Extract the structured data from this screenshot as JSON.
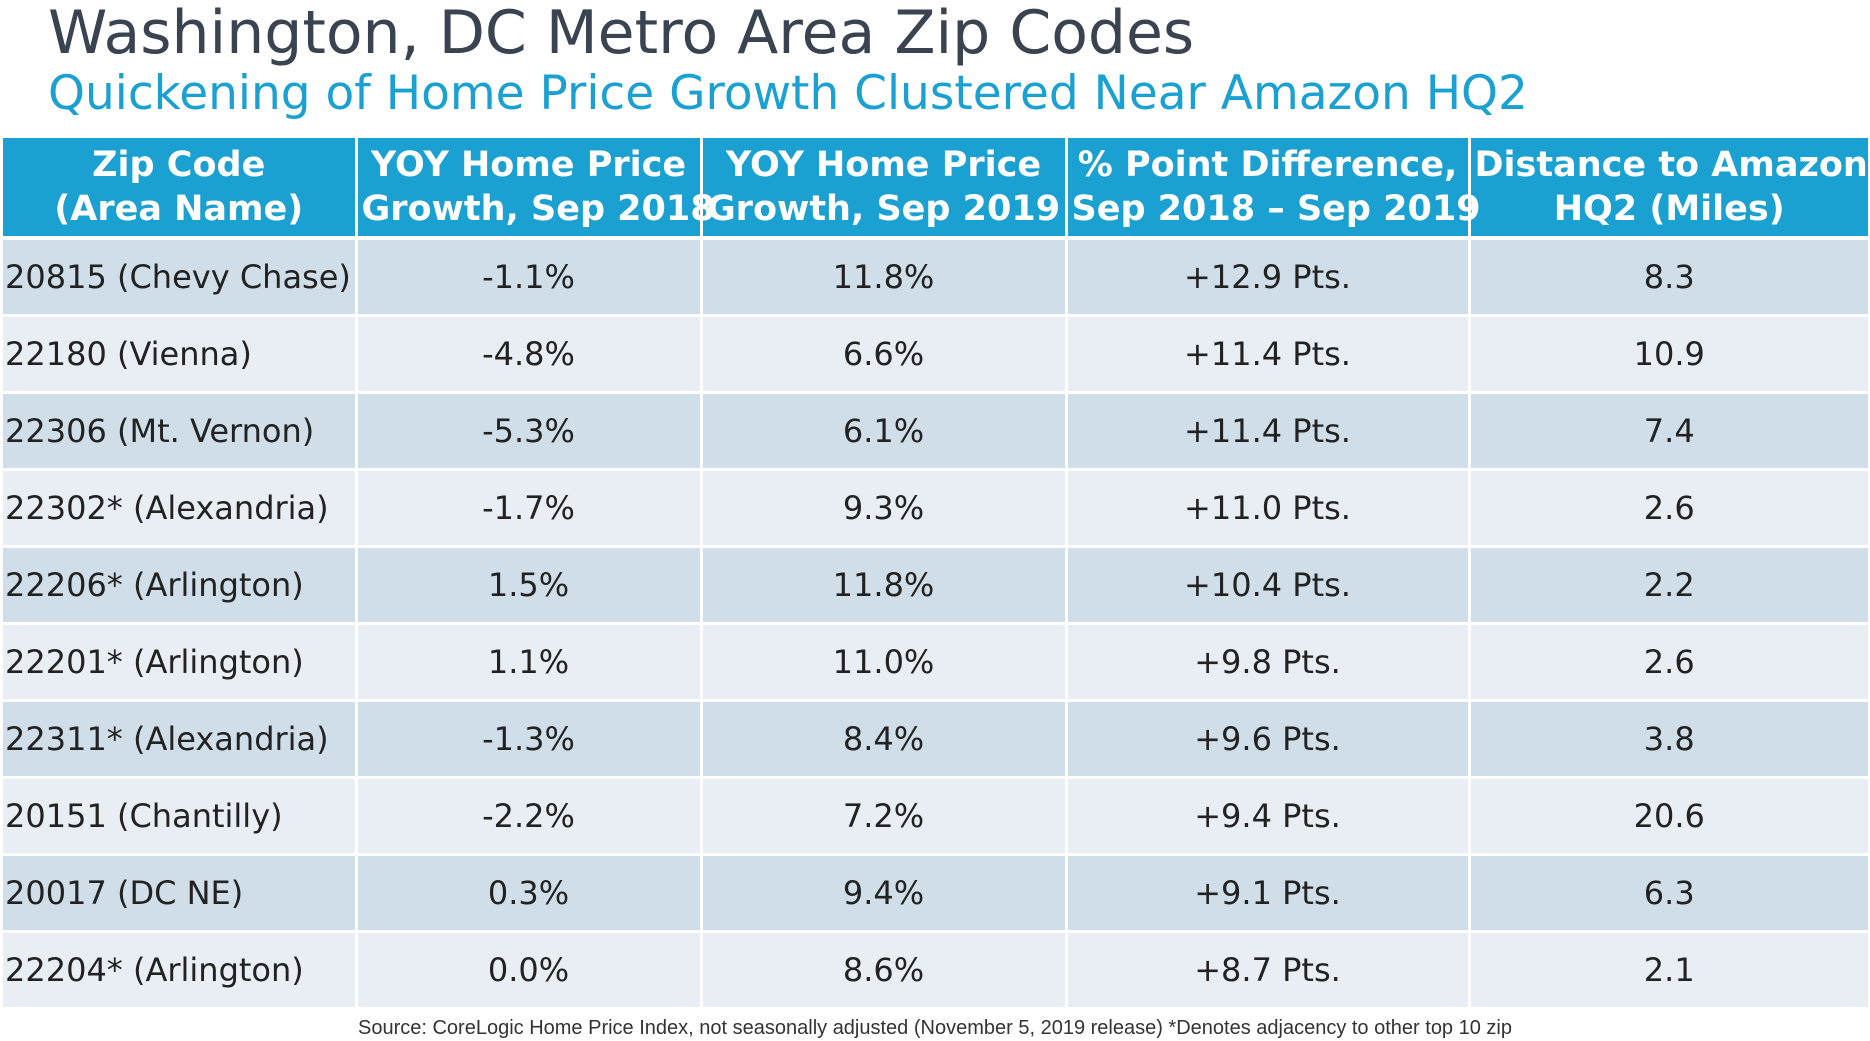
{
  "title": "Washington, DC Metro Area Zip Codes",
  "subtitle": "Quickening of Home Price Growth Clustered Near Amazon HQ2",
  "table": {
    "headers": [
      {
        "line1": "Zip Code",
        "line2": "(Area Name)"
      },
      {
        "line1": "YOY Home Price",
        "line2": "Growth, Sep 2018"
      },
      {
        "line1": "YOY Home Price",
        "line2": "Growth, Sep 2019"
      },
      {
        "line1": "% Point Difference,",
        "line2": "Sep 2018 – Sep 2019"
      },
      {
        "line1": "Distance to Amazon",
        "line2": "HQ2 (Miles)"
      }
    ],
    "rows": [
      {
        "zip": "20815 (Chevy Chase)",
        "sep2018": "-1.1%",
        "sep2019": "11.8%",
        "diff": "+12.9 Pts.",
        "distance": "8.3"
      },
      {
        "zip": "22180 (Vienna)",
        "sep2018": "-4.8%",
        "sep2019": "6.6%",
        "diff": "+11.4 Pts.",
        "distance": "10.9"
      },
      {
        "zip": "22306 (Mt. Vernon)",
        "sep2018": "-5.3%",
        "sep2019": "6.1%",
        "diff": "+11.4 Pts.",
        "distance": "7.4"
      },
      {
        "zip": "22302* (Alexandria)",
        "sep2018": "-1.7%",
        "sep2019": "9.3%",
        "diff": "+11.0 Pts.",
        "distance": "2.6"
      },
      {
        "zip": "22206* (Arlington)",
        "sep2018": "1.5%",
        "sep2019": "11.8%",
        "diff": "+10.4 Pts.",
        "distance": "2.2"
      },
      {
        "zip": "22201* (Arlington)",
        "sep2018": "1.1%",
        "sep2019": "11.0%",
        "diff": "+9.8 Pts.",
        "distance": "2.6"
      },
      {
        "zip": "22311* (Alexandria)",
        "sep2018": "-1.3%",
        "sep2019": "8.4%",
        "diff": "+9.6 Pts.",
        "distance": "3.8"
      },
      {
        "zip": "20151 (Chantilly)",
        "sep2018": "-2.2%",
        "sep2019": "7.2%",
        "diff": "+9.4 Pts.",
        "distance": "20.6"
      },
      {
        "zip": "20017 (DC NE)",
        "sep2018": "0.3%",
        "sep2019": "9.4%",
        "diff": "+9.1 Pts.",
        "distance": "6.3"
      },
      {
        "zip": "22204* (Arlington)",
        "sep2018": "0.0%",
        "sep2019": "8.6%",
        "diff": "+8.7 Pts.",
        "distance": "2.1"
      }
    ]
  },
  "source": "Source:  CoreLogic Home Price Index, not seasonally adjusted (November 5, 2019 release) *Denotes adjacency to other top 10 zip"
}
